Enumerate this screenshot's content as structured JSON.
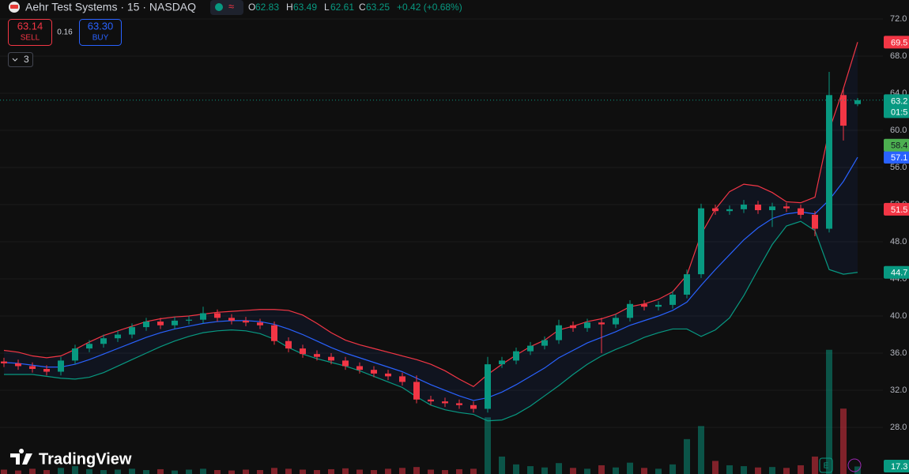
{
  "chart_data": {
    "type": "candlestick",
    "title": "Aehr Test Systems · 15 · NASDAQ",
    "ohlc_labels": [
      "O",
      "H",
      "L",
      "C"
    ],
    "change": "+0.42 (+0.68%)",
    "sell_price": 63.14,
    "sell_label": "SELL",
    "spread": 0.16,
    "buy_price": "63.30",
    "buy_label": "BUY",
    "indicator_count": 3,
    "logo": "TradingView",
    "countdown": "01:5",
    "up_color": "#089981",
    "down_color": "#f23645",
    "ylim": [
      22.98,
      74.04
    ],
    "yticks": [
      {
        "value": 28,
        "label": "28.0"
      },
      {
        "value": 32,
        "label": "32.0"
      },
      {
        "value": 36,
        "label": "36.0"
      },
      {
        "value": 40,
        "label": "40.0"
      },
      {
        "value": 44,
        "label": "44.0"
      },
      {
        "value": 48,
        "label": "48.0"
      },
      {
        "value": 52,
        "label": "52.0"
      },
      {
        "value": 56,
        "label": "56.0"
      },
      {
        "value": 60,
        "label": "60.0"
      },
      {
        "value": 64,
        "label": "64.0"
      },
      {
        "value": 68,
        "label": "68.0"
      },
      {
        "value": 72,
        "label": "72.0"
      }
    ],
    "grid": true,
    "open": [
      35.1,
      34.9,
      34.6,
      34.3,
      34.0,
      35.2,
      36.5,
      37.0,
      37.6,
      38.0,
      38.8,
      39.4,
      39.0,
      39.5,
      39.6,
      40.3,
      39.8,
      39.5,
      39.3,
      39.0,
      37.3,
      36.5,
      35.9,
      35.6,
      35.2,
      34.6,
      34.2,
      33.8,
      33.5,
      32.9,
      31.0,
      30.8,
      30.6,
      30.4,
      30.0,
      34.8,
      35.2,
      36.2,
      36.8,
      37.4,
      39.0,
      38.7,
      39.3,
      39.1,
      39.8,
      41.3,
      41.0,
      41.2,
      42.3,
      44.5,
      51.6,
      51.3,
      51.5,
      52.0,
      51.4,
      51.8,
      51.6,
      50.9,
      49.4,
      63.8,
      62.83
    ],
    "high": [
      35.5,
      35.3,
      35.0,
      34.7,
      35.6,
      36.9,
      37.4,
      38.0,
      38.4,
      39.2,
      39.8,
      39.8,
      39.9,
      40.0,
      41.0,
      40.7,
      40.2,
      39.9,
      39.7,
      39.4,
      37.7,
      36.9,
      36.3,
      36.0,
      35.6,
      35.0,
      34.6,
      34.2,
      33.9,
      33.6,
      31.4,
      31.2,
      31.0,
      30.8,
      35.6,
      35.6,
      36.6,
      37.2,
      37.8,
      39.6,
      39.4,
      39.7,
      39.8,
      40.2,
      41.7,
      41.7,
      41.6,
      42.7,
      45.0,
      52.1,
      52.0,
      51.9,
      52.5,
      52.4,
      52.2,
      52.2,
      52.0,
      51.3,
      66.3,
      64.6,
      63.49
    ],
    "low": [
      34.5,
      34.2,
      33.9,
      33.6,
      33.6,
      34.8,
      36.1,
      36.6,
      37.2,
      37.6,
      38.4,
      38.6,
      38.6,
      39.1,
      39.2,
      39.4,
      39.1,
      38.9,
      38.6,
      36.9,
      36.1,
      35.5,
      35.2,
      34.8,
      34.2,
      33.8,
      33.4,
      33.1,
      32.5,
      30.6,
      30.4,
      30.2,
      30.0,
      29.6,
      29.6,
      34.4,
      34.8,
      35.8,
      36.4,
      37.0,
      38.3,
      38.3,
      36.0,
      38.7,
      39.4,
      40.6,
      40.6,
      40.8,
      41.9,
      44.1,
      50.9,
      50.9,
      51.1,
      51.0,
      49.6,
      51.2,
      50.5,
      48.6,
      49.0,
      58.9,
      62.61
    ],
    "close": [
      34.9,
      34.6,
      34.3,
      34.0,
      35.2,
      36.5,
      37.0,
      37.6,
      38.0,
      38.8,
      39.4,
      39.0,
      39.5,
      39.6,
      40.3,
      39.8,
      39.5,
      39.3,
      39.0,
      37.3,
      36.5,
      35.9,
      35.6,
      35.2,
      34.6,
      34.2,
      33.8,
      33.5,
      32.9,
      31.0,
      30.8,
      30.6,
      30.4,
      30.0,
      34.8,
      35.2,
      36.2,
      36.8,
      37.4,
      39.0,
      38.7,
      39.3,
      39.1,
      39.8,
      41.3,
      41.0,
      41.2,
      42.3,
      44.5,
      51.6,
      51.3,
      51.5,
      52.0,
      51.4,
      51.8,
      51.6,
      50.9,
      49.4,
      63.8,
      60.5,
      63.25
    ],
    "bands": {
      "upper_color": "#f23645",
      "basis_color": "#2962ff",
      "lower_color": "#089981",
      "upper": [
        36.3,
        36.1,
        35.7,
        35.5,
        35.7,
        36.4,
        37.2,
        37.9,
        38.4,
        38.9,
        39.4,
        39.7,
        39.9,
        40.0,
        40.2,
        40.4,
        40.5,
        40.6,
        40.7,
        40.7,
        40.6,
        40.1,
        39.2,
        38.2,
        37.4,
        36.9,
        36.5,
        36.1,
        35.7,
        35.3,
        34.8,
        34.1,
        33.2,
        32.4,
        33.7,
        34.8,
        35.8,
        36.7,
        37.4,
        38.5,
        38.9,
        39.4,
        39.7,
        40.2,
        41.0,
        41.3,
        41.8,
        42.6,
        44.4,
        48.8,
        51.5,
        53.4,
        54.2,
        54.0,
        53.3,
        52.3,
        52.2,
        52.8,
        60.0,
        64.5,
        69.5
      ],
      "basis": [
        35.0,
        34.9,
        34.7,
        34.5,
        34.5,
        34.8,
        35.3,
        35.9,
        36.5,
        37.1,
        37.7,
        38.2,
        38.6,
        38.9,
        39.2,
        39.4,
        39.5,
        39.5,
        39.4,
        39.1,
        38.6,
        38.0,
        37.3,
        36.6,
        36.0,
        35.5,
        35.0,
        34.5,
        34.0,
        33.3,
        32.6,
        32.0,
        31.4,
        30.9,
        31.2,
        31.8,
        32.6,
        33.5,
        34.4,
        35.5,
        36.3,
        37.1,
        37.7,
        38.3,
        39.0,
        39.5,
        40.0,
        40.6,
        41.5,
        43.3,
        45.0,
        46.6,
        48.2,
        49.5,
        50.5,
        51.0,
        51.2,
        51.0,
        52.5,
        54.5,
        57.1
      ],
      "lower": [
        33.7,
        33.7,
        33.7,
        33.5,
        33.3,
        33.2,
        33.4,
        33.9,
        34.6,
        35.3,
        36.0,
        36.7,
        37.3,
        37.8,
        38.2,
        38.4,
        38.5,
        38.4,
        38.1,
        37.5,
        36.6,
        35.9,
        35.4,
        35.0,
        34.6,
        34.1,
        33.5,
        32.9,
        32.3,
        31.3,
        30.4,
        29.9,
        29.6,
        29.4,
        28.7,
        28.8,
        29.4,
        30.3,
        31.4,
        32.5,
        33.7,
        34.8,
        35.7,
        36.4,
        37.0,
        37.7,
        38.2,
        38.6,
        38.6,
        37.8,
        38.5,
        39.8,
        42.2,
        45.0,
        47.7,
        49.7,
        50.2,
        49.2,
        45.0,
        44.5,
        44.7
      ]
    },
    "volume": [
      10,
      8,
      12,
      9,
      14,
      18,
      11,
      9,
      10,
      12,
      9,
      11,
      8,
      10,
      12,
      9,
      8,
      10,
      9,
      14,
      12,
      10,
      9,
      11,
      13,
      10,
      9,
      12,
      14,
      16,
      10,
      9,
      11,
      12,
      130,
      40,
      22,
      18,
      15,
      25,
      14,
      12,
      20,
      15,
      26,
      14,
      12,
      22,
      80,
      110,
      30,
      20,
      18,
      15,
      16,
      14,
      20,
      40,
      285,
      150,
      17.3
    ],
    "volume_lim": [
      0,
      290
    ],
    "levels": [
      {
        "value": 63.2,
        "color": "#089981"
      },
      {
        "value": 58.4,
        "color": "#4caf50"
      },
      {
        "value": 51.5,
        "color": "#f23645"
      }
    ]
  }
}
